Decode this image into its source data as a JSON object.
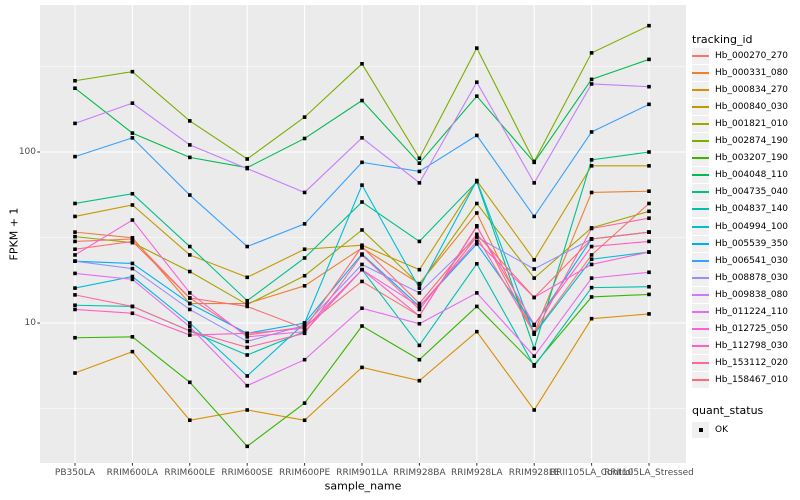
{
  "y_axis": {
    "label": "FPKM + 1",
    "tick_values": [
      100,
      10
    ]
  },
  "x_axis": {
    "label": "sample_name"
  },
  "legend": {
    "tracking_title": "tracking_id",
    "quant_title": "quant_status",
    "ok_label": "OK"
  },
  "colors": {
    "panel_bg": "#ebebeb",
    "grid": "#ffffff",
    "tick_text": "#4d4d4d",
    "point": "#000000"
  },
  "chart_data": {
    "type": "line",
    "title": "",
    "xlabel": "sample_name",
    "ylabel": "FPKM + 1",
    "y_scale": "log10",
    "y_ticks": [
      10,
      100
    ],
    "y_minor_ticks": [
      3.162,
      31.62,
      316.2
    ],
    "ylim": [
      1.5,
      700
    ],
    "grid": true,
    "legend_position": "right",
    "legend_title": "tracking_id",
    "point_shape": "square",
    "point_legend": {
      "title": "quant_status",
      "label": "OK"
    },
    "categories": [
      "PB350LA",
      "RRIM600LA",
      "RRIM600LE",
      "RRIM600SE",
      "RRIM600PE",
      "RRIM901LA",
      "RRIM928BA",
      "RRIM928LA",
      "RRIM928LE",
      "RRII105LA_Control",
      "RRII105LA_Stressed"
    ],
    "series": [
      {
        "name": "Hb_000270_270",
        "color": "#F8766D",
        "values": [
          30,
          31,
          14,
          8.5,
          9.5,
          17.5,
          11,
          37,
          8.7,
          25,
          50
        ]
      },
      {
        "name": "Hb_000331_080",
        "color": "#EA8331",
        "values": [
          34,
          31.5,
          13,
          13,
          16.5,
          27.5,
          17,
          44,
          8.8,
          58,
          59
        ]
      },
      {
        "name": "Hb_000834_270",
        "color": "#D89000",
        "values": [
          5.1,
          6.8,
          2.7,
          3.1,
          2.7,
          5.5,
          4.6,
          8.9,
          3.1,
          10.6,
          11.3
        ]
      },
      {
        "name": "Hb_000840_030",
        "color": "#C09B00",
        "values": [
          42,
          49,
          25,
          18.5,
          27,
          28.5,
          20.5,
          68,
          23.4,
          83,
          83
        ]
      },
      {
        "name": "Hb_001821_010",
        "color": "#A3A500",
        "values": [
          32,
          29.5,
          20,
          12.8,
          18.9,
          35,
          16.8,
          50,
          18.3,
          36,
          45
        ]
      },
      {
        "name": "Hb_002874_190",
        "color": "#7CAE00",
        "values": [
          261,
          295,
          152,
          91,
          160,
          328,
          92,
          405,
          88,
          380,
          548
        ]
      },
      {
        "name": "Hb_003207_190",
        "color": "#39B600",
        "values": [
          8.2,
          8.3,
          4.5,
          1.9,
          3.4,
          9.6,
          6.1,
          12.5,
          5.7,
          14.2,
          14.7
        ]
      },
      {
        "name": "Hb_004048_110",
        "color": "#00BB4E",
        "values": [
          236,
          129,
          93,
          81,
          120,
          200,
          86,
          212,
          87,
          266,
          348
        ]
      },
      {
        "name": "Hb_004735_040",
        "color": "#00C087",
        "values": [
          50,
          57,
          28,
          13.5,
          24,
          51,
          30,
          67,
          7.1,
          90,
          100
        ]
      },
      {
        "name": "Hb_004837_140",
        "color": "#00C0AF",
        "values": [
          12.7,
          12.5,
          9,
          6.5,
          8.9,
          20.5,
          7.4,
          22.2,
          5.6,
          16.1,
          16.3
        ]
      },
      {
        "name": "Hb_004994_100",
        "color": "#00BCD8",
        "values": [
          16,
          18.7,
          10,
          4.9,
          10,
          64,
          16,
          68,
          8.6,
          23.6,
          26
        ]
      },
      {
        "name": "Hb_005539_350",
        "color": "#00B0F6",
        "values": [
          23,
          22.3,
          13,
          8.7,
          10,
          25.3,
          12.5,
          29,
          9.7,
          31,
          34
        ]
      },
      {
        "name": "Hb_006541_030",
        "color": "#35A2FF",
        "values": [
          94,
          121,
          56,
          28,
          38,
          87,
          77,
          125,
          42,
          131,
          190
        ]
      },
      {
        "name": "Hb_008878_030",
        "color": "#9590FF",
        "values": [
          23,
          20.8,
          12,
          7.8,
          9.7,
          22,
          15,
          31.8,
          20.7,
          31,
          34
        ]
      },
      {
        "name": "Hb_009838_080",
        "color": "#C77CFF",
        "values": [
          147,
          193,
          110,
          80,
          58,
          121,
          66,
          256,
          66,
          250,
          241
        ]
      },
      {
        "name": "Hb_011224_110",
        "color": "#E76BF3",
        "values": [
          19.5,
          18,
          9.5,
          4.3,
          6.1,
          12.2,
          9.9,
          15,
          6.4,
          18.3,
          19.8
        ]
      },
      {
        "name": "Hb_012725_050",
        "color": "#FA62DC",
        "values": [
          25,
          40,
          15,
          8.3,
          8.9,
          20.5,
          12.5,
          30,
          14.1,
          22,
          26
        ]
      },
      {
        "name": "Hb_112798_030",
        "color": "#FF61C3",
        "values": [
          12,
          11.4,
          8.5,
          8.7,
          9.3,
          20.5,
          11,
          36.6,
          9.8,
          28,
          30
        ]
      },
      {
        "name": "Hb_153112_020",
        "color": "#FF689D",
        "values": [
          14.6,
          12.5,
          9,
          7.2,
          8.7,
          25,
          12,
          32,
          8.7,
          35.7,
          41
        ]
      },
      {
        "name": "Hb_158467_010",
        "color": "#FF6B71",
        "values": [
          27,
          30,
          14,
          12.5,
          9.3,
          28,
          13,
          33,
          14.1,
          31,
          34
        ]
      }
    ]
  }
}
